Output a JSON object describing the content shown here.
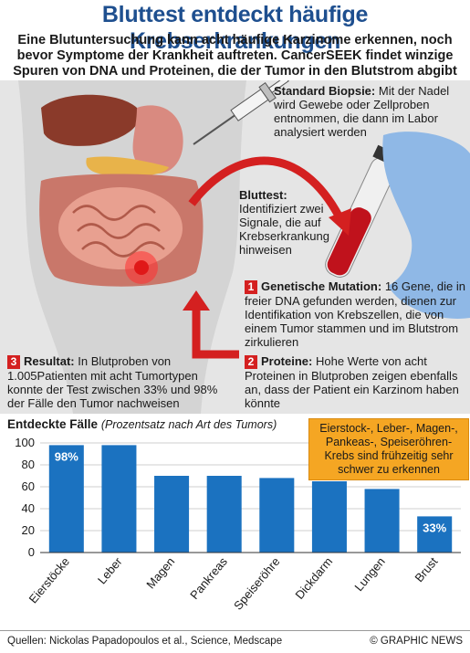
{
  "title": "Bluttest entdeckt häufige Krebserkrankungen",
  "subtitle": "Eine Blutuntersuchung kann acht häufige Karzinome erkennen, noch bevor Symptome der Krankheit auftreten. CancerSEEK findet winzige Spuren von DNA und Proteinen, die der Tumor in den Blutstrom abgibt",
  "steps": {
    "biopsy": {
      "heading": "Standard Biopsie:",
      "text": "Mit der Nadel wird Gewebe oder Zellproben entnommen, die dann im Labor analysiert werden"
    },
    "bloodtest": {
      "heading": "Bluttest:",
      "text": "Identifiziert zwei Signale, die auf Krebserkrankung hinweisen"
    },
    "mutation": {
      "number": "1",
      "heading": "Genetische Mutation:",
      "text": "16 Gene, die in freier DNA gefunden werden, dienen zur Identifikation von Krebszellen, die von einem Tumor stammen und im Blutstrom zirkulieren"
    },
    "proteins": {
      "number": "2",
      "heading": "Proteine:",
      "text": "Hohe Werte von acht Proteinen in Blutproben zeigen ebenfalls an, dass der Patient ein Karzinom haben könnte"
    },
    "result": {
      "number": "3",
      "heading": "Resultat:",
      "text": "In Blutproben von 1.005Patienten mit acht Tumortypen konnte der Test zwischen 33% und 98% der Fälle den Tumor nachweisen"
    }
  },
  "chart_heading": {
    "title": "Entdeckte Fälle",
    "note": "(Prozentsatz nach Art des Tumors)"
  },
  "callout": "Eierstock-, Leber-, Magen-, Pankeas-, Speiseröhren-Krebs sind frühzeitig sehr schwer zu erkennen",
  "chart_data": {
    "type": "bar",
    "categories": [
      "Eierstöcke",
      "Leber",
      "Magen",
      "Pankreas",
      "Speiseröhre",
      "Dickdarm",
      "Lungen",
      "Brust"
    ],
    "values": [
      98,
      98,
      70,
      70,
      68,
      65,
      58,
      33
    ],
    "data_labels": [
      "98%",
      "",
      "",
      "",
      "",
      "",
      "",
      "33%"
    ],
    "yticks": [
      "100",
      "80",
      "60",
      "40",
      "20",
      "0"
    ],
    "ylim": [
      0,
      100
    ],
    "bar_color": "#1b72c0",
    "label_color": "#ffffff",
    "grid": true,
    "highlighted": [
      "Eierstöcke",
      "Leber",
      "Magen",
      "Pankreas",
      "Speiseröhre"
    ]
  },
  "footer": {
    "sources": "Quellen: Nickolas Papadopoulos et al., Science, Medscape",
    "credit": "© GRAPHIC NEWS"
  },
  "colors": {
    "title": "#1e4f8f",
    "accent_red": "#d42020",
    "orange": "#f5a623",
    "panel": "#e5e5e5",
    "glove": "#8fb8e6"
  }
}
